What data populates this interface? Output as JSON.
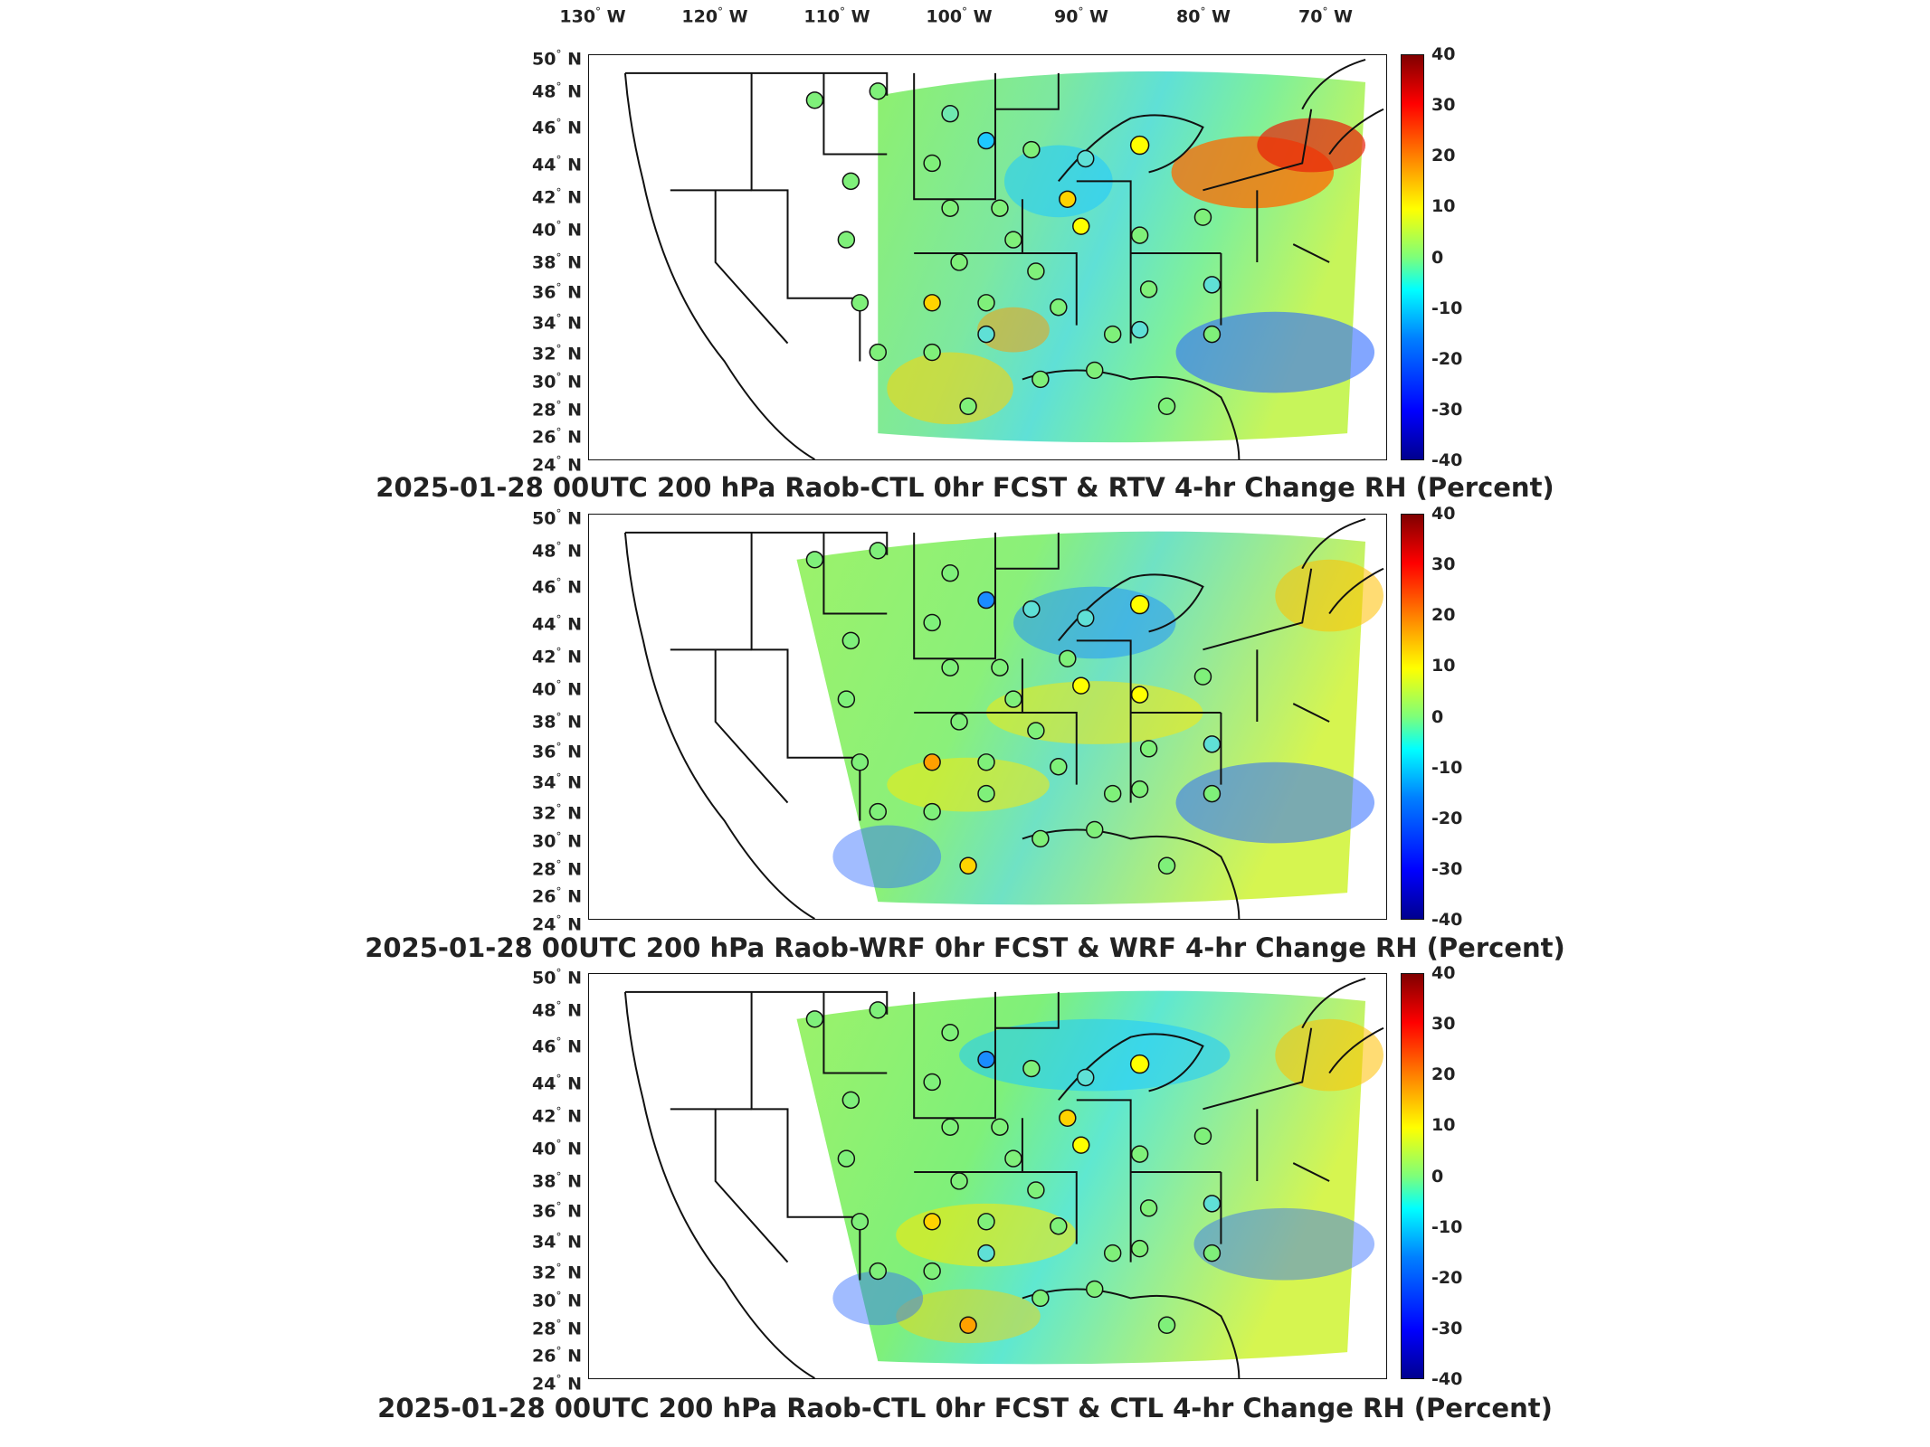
{
  "lon_labels": [
    "130",
    "120",
    "110",
    "100",
    "90",
    "80",
    "70"
  ],
  "lon_suffix": "W",
  "lat_labels": [
    "50",
    "48",
    "46",
    "44",
    "42",
    "40",
    "38",
    "36",
    "34",
    "32",
    "30",
    "28",
    "26",
    "24"
  ],
  "lat_suffix": "N",
  "degree_symbol": "°",
  "colorbar": {
    "ticks": [
      "40",
      "30",
      "20",
      "10",
      "0",
      "-10",
      "-20",
      "-30",
      "-40"
    ],
    "colors": [
      "#00008f",
      "#0000ff",
      "#0080ff",
      "#00ffff",
      "#7dff7a",
      "#ffff00",
      "#ff8000",
      "#ff0000",
      "#800000"
    ]
  },
  "panels": [
    {
      "title": "2025-01-28 00UTC 200 hPa Raob-CTL 0hr FCST & RTV 4-hr Change RH (Percent)"
    },
    {
      "title": "2025-01-28 00UTC 200 hPa Raob-WRF 0hr FCST & WRF 4-hr Change RH (Percent)"
    },
    {
      "title": "2025-01-28 00UTC 200 hPa Raob-CTL 0hr FCST & CTL 4-hr Change RH (Percent)"
    }
  ]
}
